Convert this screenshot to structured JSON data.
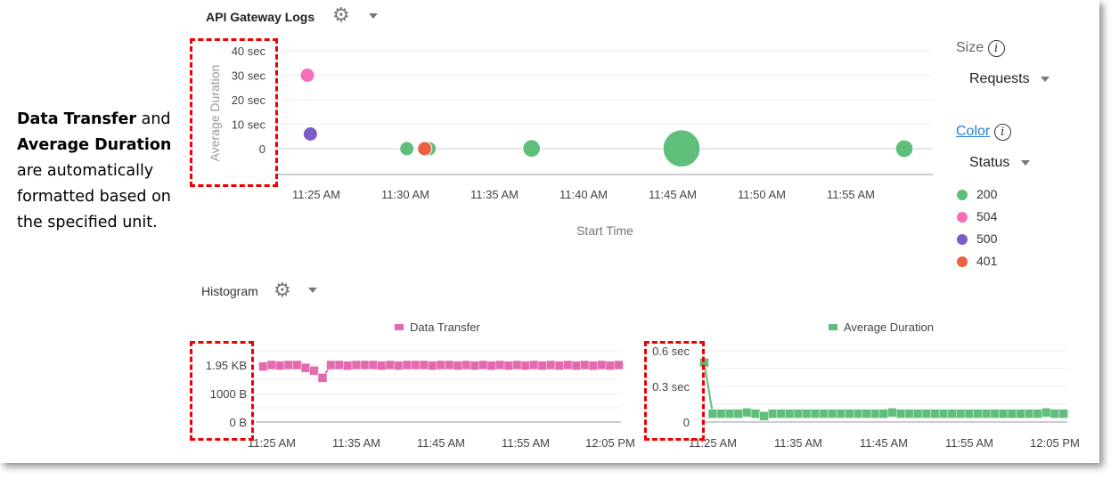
{
  "callout": {
    "bold1": "Data Transfer",
    "t1": " and ",
    "bold2": "Average Duration",
    "t2": " are automatically formatted based on the specified unit."
  },
  "bubble_panel": {
    "title": "API Gateway Logs",
    "gear_icon": "gear-icon",
    "menu_icon": "caret-down-icon"
  },
  "histogram_panel": {
    "title": "Histogram",
    "gear_icon": "gear-icon",
    "menu_icon": "caret-down-icon"
  },
  "controls": {
    "size_label": "Size",
    "size_value": "Requests",
    "color_label": "Color",
    "color_value": "Status",
    "info_glyph": "i"
  },
  "colors": {
    "200": "#5fbf7a",
    "504": "#f46fb7",
    "500": "#7e5cc8",
    "401": "#ea6143",
    "data_transfer": "#e36aae",
    "average_duration": "#5fbf7a",
    "highlight": "#e00000",
    "link": "#2a7fd4"
  },
  "chart_data": [
    {
      "type": "scatter",
      "subtype": "bubble",
      "xlabel": "Start Time",
      "ylabel": "Average Duration",
      "yticks": [
        "0",
        "10 sec",
        "20 sec",
        "30 sec",
        "40 sec"
      ],
      "ylim": [
        0,
        40
      ],
      "xticks": [
        "11:25 AM",
        "11:30 AM",
        "11:35 AM",
        "11:40 AM",
        "11:45 AM",
        "11:50 AM",
        "11:55 AM"
      ],
      "legend": {
        "title": "Status",
        "entries": [
          "200",
          "504",
          "500",
          "401"
        ],
        "placement": "right"
      },
      "points": [
        {
          "time": "11:24:30",
          "duration": 30,
          "status": "504",
          "size": 1
        },
        {
          "time": "11:24:40",
          "duration": 6,
          "status": "500",
          "size": 1
        },
        {
          "time": "11:30:05",
          "duration": 0,
          "status": "200",
          "size": 1
        },
        {
          "time": "11:31:20",
          "duration": 0,
          "status": "200",
          "size": 1
        },
        {
          "time": "11:31:05",
          "duration": 0,
          "status": "401",
          "size": 1
        },
        {
          "time": "11:37:05",
          "duration": 0.1,
          "status": "200",
          "size": 1.6
        },
        {
          "time": "11:45:30",
          "duration": 0.1,
          "status": "200",
          "size": 8
        },
        {
          "time": "11:58:00",
          "duration": 0,
          "status": "200",
          "size": 1.6
        }
      ]
    },
    {
      "type": "line",
      "series": [
        {
          "name": "Data Transfer",
          "unit": "bytes",
          "start": "11:24",
          "step_minutes": 1,
          "values": [
            1950,
            2000,
            1980,
            2000,
            2000,
            1900,
            1800,
            1550,
            2000,
            2000,
            1980,
            2000,
            2000,
            2000,
            1980,
            2000,
            1980,
            2000,
            2000,
            2000,
            1980,
            2000,
            2000,
            1980,
            2000,
            1980,
            2000,
            1980,
            2000,
            1980,
            2000,
            1980,
            2000,
            1980,
            2000,
            1980,
            2000,
            1980,
            2000,
            1980,
            2000,
            1980,
            2000
          ]
        }
      ],
      "yticks": [
        "0 B",
        "1000 B",
        "1.95 KB"
      ],
      "ylim": [
        0,
        2500
      ],
      "xticks": [
        "11:25 AM",
        "11:35 AM",
        "11:45 AM",
        "11:55 AM",
        "12:05 PM"
      ],
      "legend_placement": "top"
    },
    {
      "type": "line",
      "series": [
        {
          "name": "Average Duration",
          "unit": "sec",
          "start": "11:24",
          "step_minutes": 1,
          "values": [
            0.5,
            0.07,
            0.07,
            0.07,
            0.07,
            0.08,
            0.07,
            0.05,
            0.07,
            0.07,
            0.07,
            0.07,
            0.07,
            0.07,
            0.07,
            0.07,
            0.07,
            0.07,
            0.07,
            0.07,
            0.07,
            0.07,
            0.08,
            0.07,
            0.07,
            0.07,
            0.07,
            0.07,
            0.07,
            0.07,
            0.07,
            0.07,
            0.07,
            0.07,
            0.07,
            0.07,
            0.07,
            0.07,
            0.07,
            0.07,
            0.08,
            0.07,
            0.07
          ]
        }
      ],
      "yticks": [
        "0",
        "0.3 sec",
        "0.6 sec"
      ],
      "ylim": [
        0,
        0.6
      ],
      "xticks": [
        "11:25 AM",
        "11:35 AM",
        "11:45 AM",
        "11:55 AM",
        "12:05 PM"
      ],
      "legend_placement": "top"
    }
  ]
}
